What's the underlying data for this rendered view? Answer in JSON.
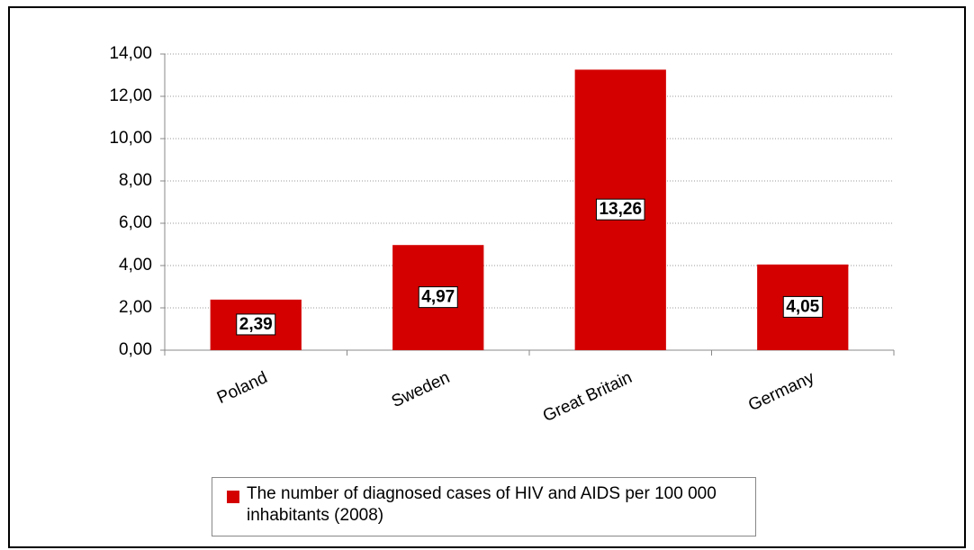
{
  "chart_data": {
    "type": "bar",
    "categories": [
      "Poland",
      "Sweden",
      "Great Britain",
      "Germany"
    ],
    "series": [
      {
        "name": "The number of diagnosed cases of HIV and AIDS per 100 000 inhabitants (2008)",
        "color": "#d40000",
        "values": [
          2.39,
          4.97,
          13.26,
          4.05
        ],
        "value_labels": [
          "2,39",
          "4,97",
          "13,26",
          "4,05"
        ]
      }
    ],
    "ylim": [
      0,
      14
    ],
    "yticks": [
      {
        "value": 0,
        "label": "0,00"
      },
      {
        "value": 2,
        "label": "2,00"
      },
      {
        "value": 4,
        "label": "4,00"
      },
      {
        "value": 6,
        "label": "6,00"
      },
      {
        "value": 8,
        "label": "8,00"
      },
      {
        "value": 10,
        "label": "10,00"
      },
      {
        "value": 12,
        "label": "12,00"
      },
      {
        "value": 14,
        "label": "14,00"
      }
    ],
    "grid": true,
    "legend": "bottom"
  }
}
